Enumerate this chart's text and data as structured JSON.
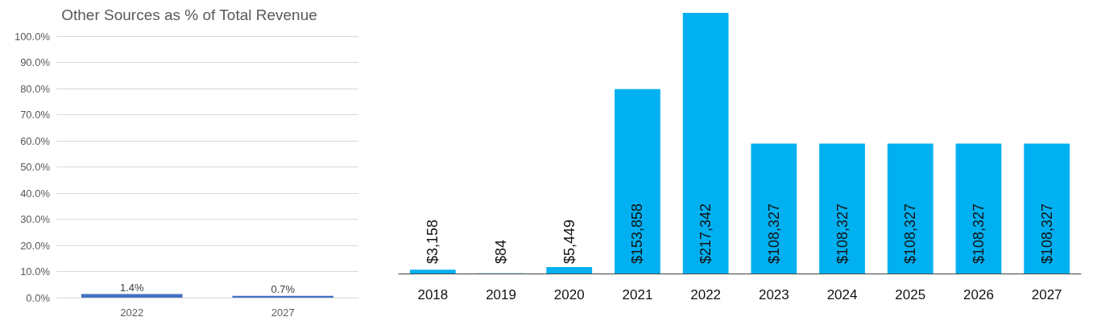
{
  "chart_data": [
    {
      "type": "bar",
      "title": "Other Sources as % of Total Revenue",
      "categories": [
        "2022",
        "2027"
      ],
      "values": [
        1.4,
        0.7
      ],
      "value_labels": [
        "1.4%",
        "0.7%"
      ],
      "color": "#4472c4",
      "ylim": [
        0,
        100
      ],
      "yticks": [
        {
          "value": 0,
          "label": "0.0%"
        },
        {
          "value": 10,
          "label": "10.0%"
        },
        {
          "value": 20,
          "label": "20.0%"
        },
        {
          "value": 30,
          "label": "30.0%"
        },
        {
          "value": 40,
          "label": "40.0%"
        },
        {
          "value": 50,
          "label": "50.0%"
        },
        {
          "value": 60,
          "label": "60.0%"
        },
        {
          "value": 70,
          "label": "70.0%"
        },
        {
          "value": 80,
          "label": "80.0%"
        },
        {
          "value": 90,
          "label": "90.0%"
        },
        {
          "value": 100,
          "label": "100.0%"
        }
      ],
      "grid": true
    },
    {
      "type": "bar",
      "categories": [
        "2018",
        "2019",
        "2020",
        "2021",
        "2022",
        "2023",
        "2024",
        "2025",
        "2026",
        "2027"
      ],
      "values": [
        3158,
        84,
        5449,
        153858,
        217342,
        108327,
        108327,
        108327,
        108327,
        108327
      ],
      "value_labels": [
        "$3,158",
        "$84",
        "$5,449",
        "$153,858",
        "$217,342",
        "$108,327",
        "$108,327",
        "$108,327",
        "$108,327",
        "$108,327"
      ],
      "color": "#00b0f0",
      "tick_labels": "x"
    }
  ]
}
